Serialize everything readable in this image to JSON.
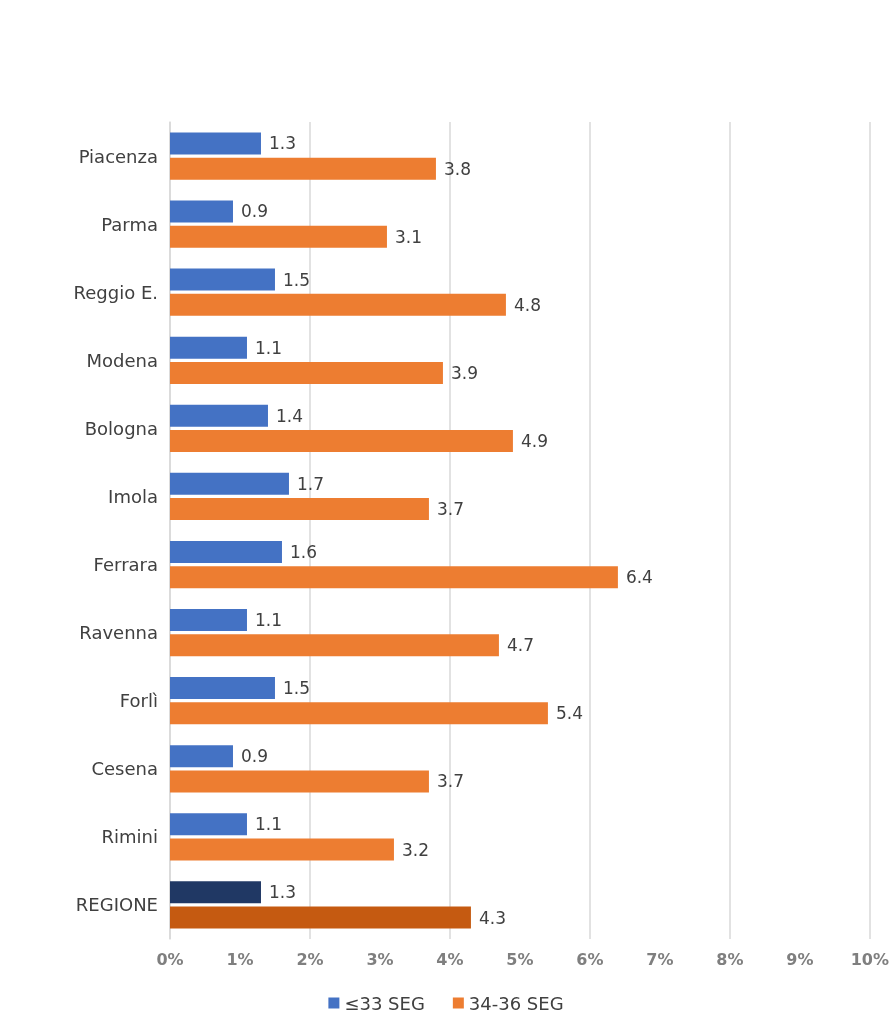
{
  "chart_data": {
    "type": "bar",
    "orientation": "horizontal",
    "categories": [
      "Piacenza",
      "Parma",
      "Reggio E.",
      "Modena",
      "Bologna",
      "Imola",
      "Ferrara",
      "Ravenna",
      "Forlì",
      "Cesena",
      "Rimini",
      "REGIONE"
    ],
    "series": [
      {
        "name": "≤33 SEG",
        "color": "#4472c4",
        "colors": [
          "#4472c4",
          "#4472c4",
          "#4472c4",
          "#4472c4",
          "#4472c4",
          "#4472c4",
          "#4472c4",
          "#4472c4",
          "#4472c4",
          "#4472c4",
          "#4472c4",
          "#203864"
        ],
        "values": [
          1.3,
          0.9,
          1.5,
          1.1,
          1.4,
          1.7,
          1.6,
          1.1,
          1.5,
          0.9,
          1.1,
          1.3
        ]
      },
      {
        "name": "34-36 SEG",
        "color": "#ed7d31",
        "colors": [
          "#ed7d31",
          "#ed7d31",
          "#ed7d31",
          "#ed7d31",
          "#ed7d31",
          "#ed7d31",
          "#ed7d31",
          "#ed7d31",
          "#ed7d31",
          "#ed7d31",
          "#ed7d31",
          "#c55a11"
        ],
        "values": [
          3.8,
          3.1,
          4.8,
          3.9,
          4.9,
          3.7,
          6.4,
          4.7,
          5.4,
          3.7,
          3.2,
          4.3
        ]
      }
    ],
    "xlim": [
      0,
      10
    ],
    "xticks": [
      {
        "value": 0,
        "label": "0%"
      },
      {
        "value": 1,
        "label": "1%"
      },
      {
        "value": 2,
        "label": "2%"
      },
      {
        "value": 3,
        "label": "3%"
      },
      {
        "value": 4,
        "label": "4%"
      },
      {
        "value": 5,
        "label": "5%"
      },
      {
        "value": 6,
        "label": "6%"
      },
      {
        "value": 7,
        "label": "7%"
      },
      {
        "value": 8,
        "label": "8%"
      },
      {
        "value": 9,
        "label": "9%"
      },
      {
        "value": 10,
        "label": "10%"
      }
    ],
    "grid": "x",
    "data_labels": true,
    "legend": "bottom"
  }
}
